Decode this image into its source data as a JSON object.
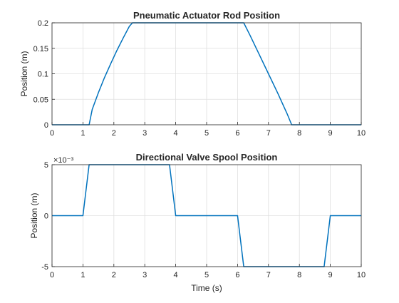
{
  "chart_data": [
    {
      "type": "line",
      "title": "Pneumatic Actuator Rod Position",
      "xlabel": "",
      "ylabel": "Position (m)",
      "xlim": [
        0,
        10
      ],
      "ylim": [
        0,
        0.2
      ],
      "xticks": [
        "0",
        "1",
        "2",
        "3",
        "4",
        "5",
        "6",
        "7",
        "8",
        "9",
        "10"
      ],
      "yticks": [
        "0",
        "0.05",
        "0.1",
        "0.15",
        "0.2"
      ],
      "grid": true,
      "line_color": "#0072BD",
      "series": [
        {
          "x": [
            0,
            1.2,
            1.3,
            1.5,
            1.7,
            1.9,
            2.1,
            2.3,
            2.5,
            2.6,
            6.2,
            6.4,
            6.7,
            7.0,
            7.3,
            7.6,
            7.75,
            10
          ],
          "y": [
            0,
            0,
            0.03,
            0.063,
            0.093,
            0.12,
            0.146,
            0.17,
            0.193,
            0.2,
            0.2,
            0.176,
            0.138,
            0.1,
            0.062,
            0.022,
            0,
            0
          ]
        }
      ]
    },
    {
      "type": "line",
      "title": "Directional Valve Spool Position",
      "xlabel": "Time (s)",
      "ylabel": "Position (m)",
      "exponent_label": "×10⁻³",
      "xlim": [
        0,
        10
      ],
      "ylim": [
        -5,
        5
      ],
      "xticks": [
        "0",
        "1",
        "2",
        "3",
        "4",
        "5",
        "6",
        "7",
        "8",
        "9",
        "10"
      ],
      "yticks": [
        "-5",
        "0",
        "5"
      ],
      "grid": true,
      "line_color": "#0072BD",
      "series": [
        {
          "x": [
            0,
            1.0,
            1.2,
            3.8,
            4.0,
            6.0,
            6.2,
            8.8,
            9.0,
            10
          ],
          "y": [
            0,
            0,
            5,
            5,
            0,
            0,
            -5,
            -5,
            0,
            0
          ]
        }
      ]
    }
  ]
}
